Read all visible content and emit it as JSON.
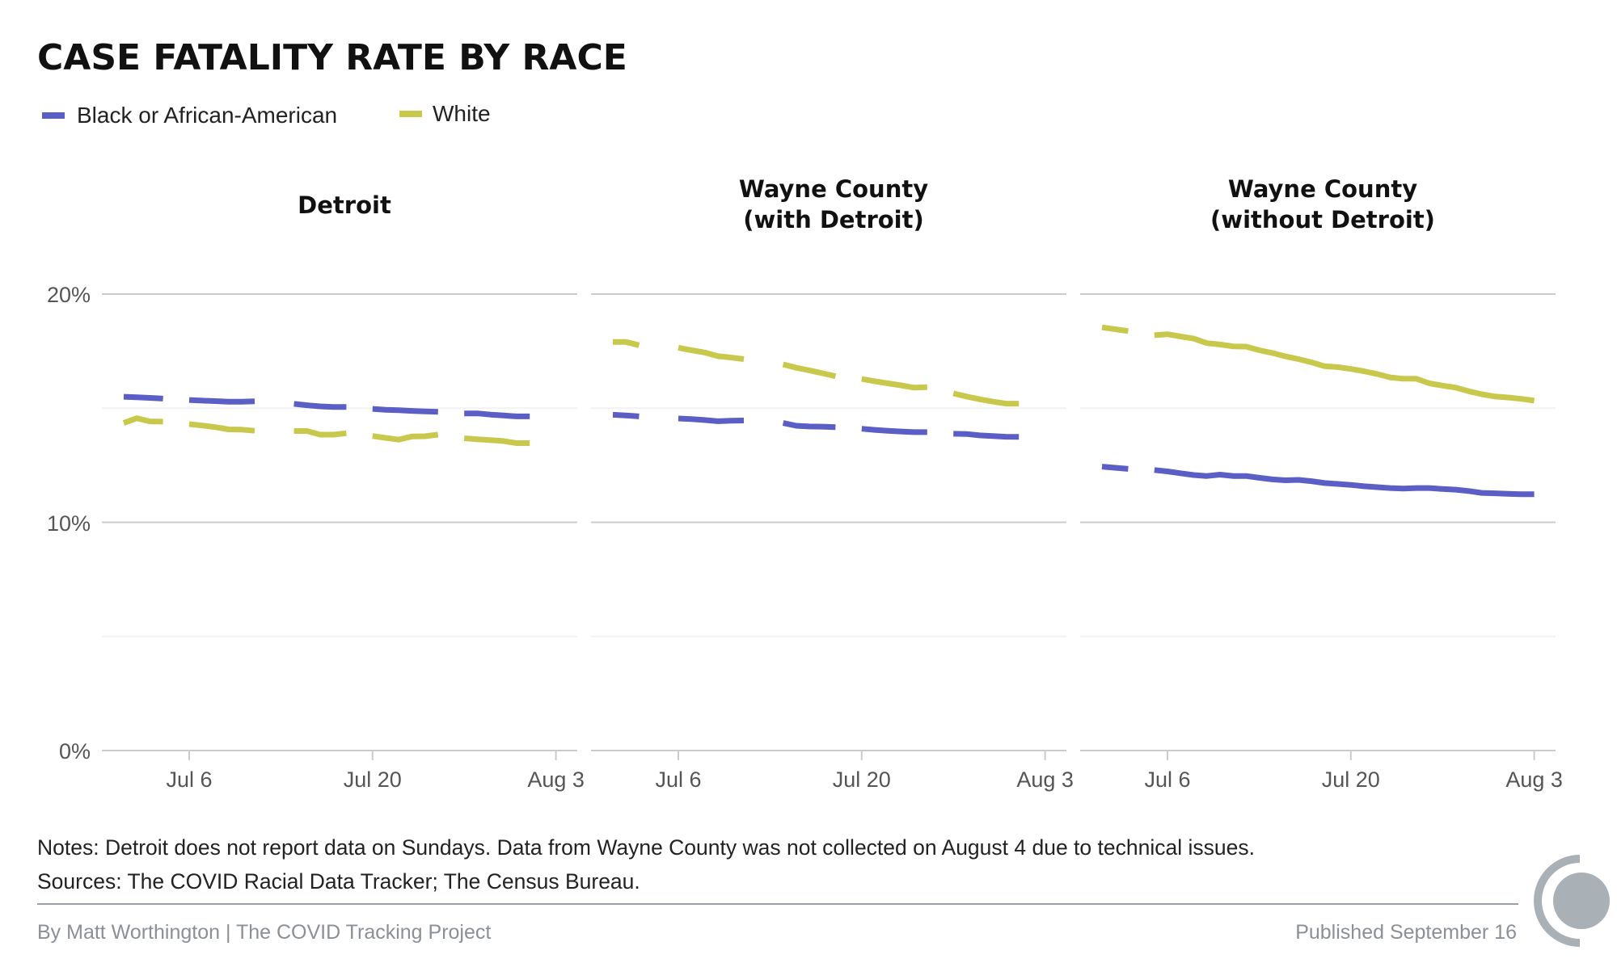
{
  "chart_data": {
    "type": "line",
    "title": "CASE FATALITY RATE BY RACE",
    "legend_placement": "top-left",
    "legend": [
      {
        "name": "Black or African-American",
        "color": "#5b5ec4"
      },
      {
        "name": "White",
        "color": "#c8c94c"
      }
    ],
    "ylim": [
      0,
      20
    ],
    "y_ticks": [
      "20%",
      "10%",
      "0%"
    ],
    "y_tick_values": [
      20,
      10,
      0
    ],
    "grid": true,
    "x_ticks": [
      "Jul 6",
      "Jul 20",
      "Aug 3"
    ],
    "x": [
      "Jul 1",
      "Jul 2",
      "Jul 3",
      "Jul 4",
      "Jul 5",
      "Jul 6",
      "Jul 7",
      "Jul 8",
      "Jul 9",
      "Jul 10",
      "Jul 11",
      "Jul 12",
      "Jul 13",
      "Jul 14",
      "Jul 15",
      "Jul 16",
      "Jul 17",
      "Jul 18",
      "Jul 19",
      "Jul 20",
      "Jul 21",
      "Jul 22",
      "Jul 23",
      "Jul 24",
      "Jul 25",
      "Jul 26",
      "Jul 27",
      "Jul 28",
      "Jul 29",
      "Jul 30",
      "Jul 31",
      "Aug 1",
      "Aug 2",
      "Aug 3"
    ],
    "panels": [
      {
        "title_lines": [
          "Detroit"
        ],
        "series": [
          {
            "name": "Black or African-American",
            "values": [
              15.5,
              15.48,
              15.45,
              15.42,
              null,
              15.36,
              15.33,
              15.31,
              15.28,
              15.28,
              15.3,
              null,
              null,
              15.19,
              15.13,
              15.08,
              15.05,
              15.05,
              null,
              14.97,
              14.93,
              14.91,
              14.88,
              14.86,
              14.84,
              null,
              14.77,
              14.77,
              14.72,
              14.68,
              14.64,
              14.64,
              null,
              null
            ]
          },
          {
            "name": "White",
            "values": [
              14.35,
              14.56,
              14.42,
              14.41,
              null,
              14.3,
              14.24,
              14.17,
              14.07,
              14.06,
              14.01,
              null,
              null,
              14.0,
              14.0,
              13.84,
              13.84,
              13.9,
              null,
              13.78,
              13.7,
              13.62,
              13.76,
              13.77,
              13.84,
              null,
              13.68,
              13.64,
              13.6,
              13.56,
              13.47,
              13.47,
              null,
              null
            ]
          }
        ]
      },
      {
        "title_lines": [
          "Wayne County",
          "(with Detroit)"
        ],
        "series": [
          {
            "name": "Black or African-American",
            "values": [
              14.71,
              14.68,
              14.64,
              null,
              null,
              14.55,
              14.52,
              14.48,
              14.43,
              14.45,
              14.46,
              null,
              null,
              14.35,
              14.23,
              14.2,
              14.19,
              14.17,
              null,
              14.1,
              14.05,
              14.01,
              13.98,
              13.95,
              13.95,
              null,
              13.88,
              13.87,
              13.81,
              13.78,
              13.75,
              13.74,
              null,
              null
            ]
          },
          {
            "name": "White",
            "values": [
              17.9,
              17.9,
              17.76,
              null,
              null,
              17.65,
              17.54,
              17.44,
              17.28,
              17.22,
              17.15,
              null,
              null,
              16.92,
              16.77,
              16.66,
              16.53,
              16.4,
              null,
              16.28,
              16.18,
              16.09,
              16.0,
              15.9,
              15.92,
              null,
              15.65,
              15.51,
              15.39,
              15.29,
              15.2,
              15.2,
              null,
              null
            ]
          }
        ]
      },
      {
        "title_lines": [
          "Wayne County",
          "(without Detroit)"
        ],
        "series": [
          {
            "name": "Black or African-American",
            "values": [
              12.44,
              12.39,
              12.34,
              null,
              12.29,
              12.23,
              12.15,
              12.07,
              12.03,
              12.09,
              12.03,
              12.03,
              11.95,
              11.88,
              11.84,
              11.86,
              11.8,
              11.72,
              11.68,
              11.64,
              11.58,
              11.54,
              11.5,
              11.48,
              11.5,
              11.5,
              11.46,
              11.43,
              11.37,
              11.29,
              11.27,
              11.25,
              11.23,
              11.23
            ]
          },
          {
            "name": "White",
            "values": [
              18.54,
              18.46,
              18.38,
              null,
              18.2,
              18.24,
              18.14,
              18.05,
              17.85,
              17.79,
              17.71,
              17.7,
              17.54,
              17.42,
              17.27,
              17.15,
              17.01,
              16.84,
              16.8,
              16.72,
              16.62,
              16.5,
              16.35,
              16.29,
              16.29,
              16.09,
              15.99,
              15.9,
              15.74,
              15.61,
              15.51,
              15.47,
              15.41,
              15.33
            ]
          }
        ]
      }
    ]
  },
  "notes": "Notes: Detroit does not report data on Sundays. Data from Wayne County was not collected on August 4 due to technical issues.",
  "sources": "Sources: The COVID Racial Data Tracker; The Census Bureau.",
  "footer": {
    "byline": "By Matt Worthington | The COVID Tracking Project",
    "published": "Published September 16"
  },
  "logo": {
    "icon": "covid-tracking-project-logo",
    "color": "#a9b1b7"
  }
}
